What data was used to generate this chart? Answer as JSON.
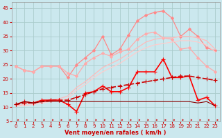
{
  "background_color": "#cbe8ee",
  "grid_color": "#aacccc",
  "xlabel": "Vent moyen/en rafales ( km/h )",
  "xlim": [
    -0.5,
    23.5
  ],
  "ylim": [
    5,
    47
  ],
  "yticks": [
    5,
    10,
    15,
    20,
    25,
    30,
    35,
    40,
    45
  ],
  "xticks": [
    0,
    1,
    2,
    3,
    4,
    5,
    6,
    7,
    8,
    9,
    10,
    11,
    12,
    13,
    14,
    15,
    16,
    17,
    18,
    19,
    20,
    21,
    22,
    23
  ],
  "series": [
    {
      "name": "pink_dotted_upper",
      "x": [
        0,
        1,
        2,
        3,
        4,
        5,
        6,
        7,
        8,
        9,
        10,
        11,
        12,
        13,
        14,
        15,
        16,
        17,
        18,
        19,
        20,
        21,
        22,
        23
      ],
      "y": [
        24.5,
        23.0,
        22.5,
        24.5,
        24.5,
        24.5,
        20.5,
        25.0,
        27.5,
        30.0,
        35.0,
        28.5,
        30.5,
        35.5,
        40.5,
        42.5,
        43.5,
        44.0,
        41.5,
        35.0,
        37.5,
        35.0,
        31.0,
        30.0
      ],
      "color": "#ff8888",
      "linewidth": 0.9,
      "marker": "D",
      "markersize": 2.0,
      "linestyle": "-",
      "alpha": 1.0
    },
    {
      "name": "pink_dotted_lower",
      "x": [
        0,
        1,
        2,
        3,
        4,
        5,
        6,
        7,
        8,
        9,
        10,
        11,
        12,
        13,
        14,
        15,
        16,
        17,
        18,
        19,
        20,
        21,
        22,
        23
      ],
      "y": [
        24.5,
        23.0,
        22.5,
        24.5,
        24.5,
        24.5,
        22.0,
        21.0,
        25.5,
        27.5,
        29.0,
        28.0,
        29.5,
        30.5,
        34.0,
        36.0,
        36.5,
        34.5,
        34.0,
        30.5,
        31.0,
        27.5,
        24.5,
        22.5
      ],
      "color": "#ffaaaa",
      "linewidth": 0.9,
      "marker": "D",
      "markersize": 2.0,
      "linestyle": "-",
      "alpha": 1.0
    },
    {
      "name": "pale_diagonal_upper",
      "x": [
        0,
        1,
        2,
        3,
        4,
        5,
        6,
        7,
        8,
        9,
        10,
        11,
        12,
        13,
        14,
        15,
        16,
        17,
        18,
        19,
        20,
        21,
        22,
        23
      ],
      "y": [
        10.5,
        11.0,
        11.5,
        12.0,
        12.5,
        13.0,
        14.0,
        17.0,
        19.0,
        21.5,
        24.0,
        25.5,
        27.0,
        29.0,
        31.0,
        33.0,
        34.0,
        34.5,
        34.5,
        35.0,
        35.0,
        34.5,
        33.5,
        30.5
      ],
      "color": "#ffbbbb",
      "linewidth": 0.9,
      "marker": null,
      "markersize": 0,
      "linestyle": "-",
      "alpha": 1.0
    },
    {
      "name": "pale_diagonal_lower",
      "x": [
        0,
        1,
        2,
        3,
        4,
        5,
        6,
        7,
        8,
        9,
        10,
        11,
        12,
        13,
        14,
        15,
        16,
        17,
        18,
        19,
        20,
        21,
        22,
        23
      ],
      "y": [
        10.5,
        10.5,
        11.0,
        11.5,
        12.0,
        12.5,
        13.0,
        16.0,
        18.0,
        20.5,
        22.5,
        24.0,
        25.5,
        27.5,
        29.5,
        31.0,
        32.0,
        32.5,
        33.0,
        33.5,
        33.5,
        33.0,
        32.0,
        29.5
      ],
      "color": "#ffcccc",
      "linewidth": 0.9,
      "marker": null,
      "markersize": 0,
      "linestyle": "-",
      "alpha": 1.0
    },
    {
      "name": "dark_red_markers",
      "x": [
        0,
        1,
        2,
        3,
        4,
        5,
        6,
        7,
        8,
        9,
        10,
        11,
        12,
        13,
        14,
        15,
        16,
        17,
        18,
        19,
        20,
        21,
        22,
        23
      ],
      "y": [
        11.0,
        12.0,
        11.5,
        12.5,
        12.5,
        12.5,
        11.0,
        8.5,
        15.0,
        15.5,
        17.5,
        15.5,
        15.5,
        17.0,
        22.5,
        22.5,
        22.5,
        27.0,
        20.5,
        20.5,
        21.0,
        12.5,
        13.5,
        10.5
      ],
      "color": "#ff0000",
      "linewidth": 1.2,
      "marker": "+",
      "markersize": 4.0,
      "linestyle": "-",
      "alpha": 1.0
    },
    {
      "name": "dashed_trend_markers",
      "x": [
        0,
        1,
        2,
        3,
        4,
        5,
        6,
        7,
        8,
        9,
        10,
        11,
        12,
        13,
        14,
        15,
        16,
        17,
        18,
        19,
        20,
        21,
        22,
        23
      ],
      "y": [
        11.0,
        11.5,
        11.5,
        12.0,
        12.5,
        12.5,
        12.5,
        13.5,
        14.5,
        15.5,
        16.5,
        17.0,
        17.5,
        18.0,
        18.5,
        19.0,
        19.5,
        20.0,
        20.5,
        21.0,
        21.0,
        20.5,
        20.0,
        19.5
      ],
      "color": "#cc0000",
      "linewidth": 1.2,
      "marker": "+",
      "markersize": 4.0,
      "linestyle": "--",
      "alpha": 1.0
    },
    {
      "name": "dark_flat",
      "x": [
        0,
        1,
        2,
        3,
        4,
        5,
        6,
        7,
        8,
        9,
        10,
        11,
        12,
        13,
        14,
        15,
        16,
        17,
        18,
        19,
        20,
        21,
        22,
        23
      ],
      "y": [
        11.0,
        12.0,
        11.5,
        12.0,
        12.0,
        12.0,
        12.0,
        12.0,
        12.0,
        12.0,
        12.0,
        12.0,
        12.0,
        12.0,
        12.0,
        12.0,
        12.0,
        12.0,
        12.0,
        12.0,
        12.0,
        11.5,
        12.0,
        10.5
      ],
      "color": "#880000",
      "linewidth": 0.8,
      "marker": null,
      "markersize": 0,
      "linestyle": "-",
      "alpha": 1.0
    }
  ],
  "arrows": {
    "y_data": 5.5,
    "color": "#cc0000",
    "sizes": [
      6,
      6,
      6,
      6,
      6,
      6,
      7,
      7,
      7,
      7,
      7,
      7,
      7,
      7,
      7,
      7,
      7,
      7,
      7,
      7,
      7,
      6,
      6,
      6
    ]
  }
}
